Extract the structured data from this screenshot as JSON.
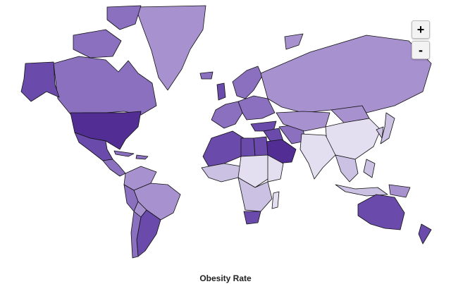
{
  "legend_title": "Obesity Rate",
  "controls": {
    "zoom_in_label": "+",
    "zoom_out_label": "-"
  },
  "colors": {
    "background": "#ffffff",
    "border": "#111111",
    "scale": [
      "#e4dff0",
      "#cbc1e2",
      "#a891cf",
      "#8a70bf",
      "#6a4aaa",
      "#522e94"
    ]
  },
  "regions": [
    {
      "name": "Greenland",
      "level": 2
    },
    {
      "name": "Canada",
      "level": 3
    },
    {
      "name": "Alaska",
      "level": 4
    },
    {
      "name": "Arctic islands",
      "level": 3
    },
    {
      "name": "Canadian Arctic Archipelago",
      "level": 3
    },
    {
      "name": "United States",
      "level": 5
    },
    {
      "name": "Mexico",
      "level": 4
    },
    {
      "name": "Central America",
      "level": 3
    },
    {
      "name": "Cuba",
      "level": 3
    },
    {
      "name": "Caribbean",
      "level": 3
    },
    {
      "name": "South America North",
      "level": 2
    },
    {
      "name": "Brazil",
      "level": 2
    },
    {
      "name": "Peru",
      "level": 3
    },
    {
      "name": "Bolivia",
      "level": 2
    },
    {
      "name": "Argentina",
      "level": 4
    },
    {
      "name": "Chile",
      "level": 3
    },
    {
      "name": "Iceland",
      "level": 3
    },
    {
      "name": "United Kingdom",
      "level": 4
    },
    {
      "name": "Scandinavia",
      "level": 3
    },
    {
      "name": "Western Europe",
      "level": 3
    },
    {
      "name": "Eastern Europe",
      "level": 3
    },
    {
      "name": "Russia",
      "level": 2
    },
    {
      "name": "Novaya Zemlya",
      "level": 2
    },
    {
      "name": "Turkey",
      "level": 4
    },
    {
      "name": "Middle East",
      "level": 4
    },
    {
      "name": "Saudi Arabia",
      "level": 5
    },
    {
      "name": "Iran",
      "level": 3
    },
    {
      "name": "Central Asia",
      "level": 2
    },
    {
      "name": "Mongolia",
      "level": 2
    },
    {
      "name": "China",
      "level": 0
    },
    {
      "name": "South Asia",
      "level": 0
    },
    {
      "name": "Southeast Asia",
      "level": 1
    },
    {
      "name": "Korea",
      "level": 1
    },
    {
      "name": "Japan",
      "level": 1
    },
    {
      "name": "Indonesia",
      "level": 1
    },
    {
      "name": "Philippines",
      "level": 1
    },
    {
      "name": "New Guinea",
      "level": 2
    },
    {
      "name": "Australia",
      "level": 4
    },
    {
      "name": "New Zealand",
      "level": 4
    },
    {
      "name": "North Africa",
      "level": 4
    },
    {
      "name": "Egypt",
      "level": 4
    },
    {
      "name": "Libya",
      "level": 4
    },
    {
      "name": "West Africa",
      "level": 1
    },
    {
      "name": "Central Africa",
      "level": 0
    },
    {
      "name": "East Africa",
      "level": 0
    },
    {
      "name": "Southern Africa",
      "level": 1
    },
    {
      "name": "South Africa",
      "level": 4
    },
    {
      "name": "Madagascar",
      "level": 0
    }
  ]
}
